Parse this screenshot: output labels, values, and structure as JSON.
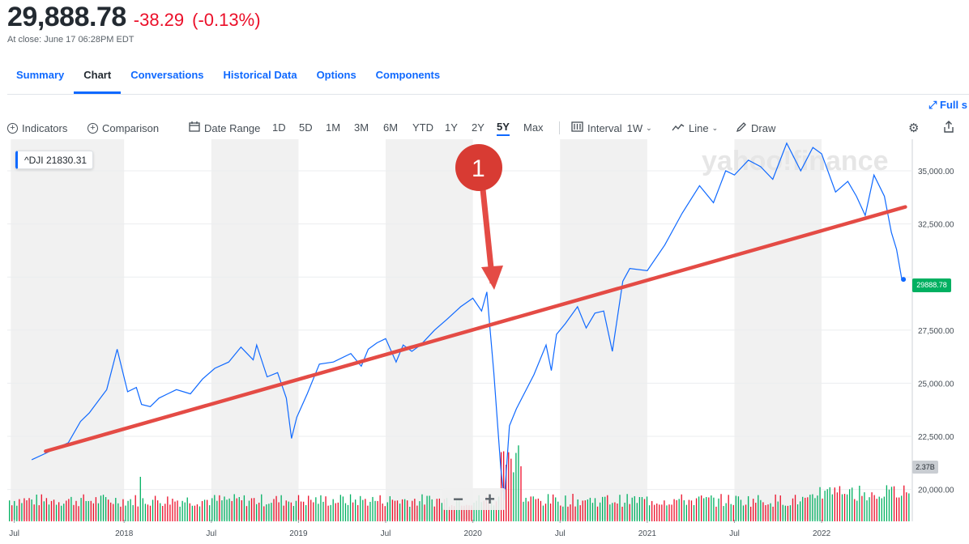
{
  "quote": {
    "price": "29,888.78",
    "change": "-38.29",
    "change_pct": "(-0.13%)",
    "close_time": "At close: June 17 06:28PM EDT"
  },
  "tabs": [
    "Summary",
    "Chart",
    "Conversations",
    "Historical Data",
    "Options",
    "Components"
  ],
  "active_tab": "Chart",
  "fullscreen_label": "Full s",
  "toolbar": {
    "indicators": "Indicators",
    "comparison": "Comparison",
    "date_range": "Date Range",
    "ranges": [
      "1D",
      "5D",
      "1M",
      "3M",
      "6M",
      "YTD",
      "1Y",
      "2Y",
      "5Y",
      "Max"
    ],
    "selected_range": "5Y",
    "interval_label": "Interval",
    "interval_value": "1W",
    "line_label": "Line",
    "draw_label": "Draw"
  },
  "legend": {
    "symbol": "^DJI",
    "value": "21830.31"
  },
  "price_tag": "29888.78",
  "volume_tag": "2.37B",
  "watermark": "yahoo!finance",
  "annotation": {
    "number": "1"
  },
  "colors": {
    "line": "#0f69ff",
    "trend": "#e44b45",
    "up": "#00b061",
    "down": "#eb0f29",
    "band": "#f1f1f1"
  },
  "chart_data": {
    "type": "line",
    "series": [
      {
        "values_by_date": true
      }
    ],
    "x_tick_labels": [
      "Jul",
      "2018",
      "Jul",
      "2019",
      "Jul",
      "2020",
      "Jul",
      "2021",
      "Jul",
      "2022"
    ],
    "y_tick_labels": [
      "35,000.00",
      "32,500.00",
      "",
      "27,500.00",
      "25,000.00",
      "22,500.00",
      "20,000.00"
    ],
    "y_ticks": [
      35000,
      32500,
      30000,
      27500,
      25000,
      22500,
      20000
    ],
    "ylim": [
      19000,
      36500
    ],
    "x": [
      2017.47,
      2017.55,
      2017.6,
      2017.68,
      2017.75,
      2017.8,
      2017.9,
      2017.96,
      2018.02,
      2018.07,
      2018.1,
      2018.15,
      2018.2,
      2018.25,
      2018.3,
      2018.38,
      2018.45,
      2018.52,
      2018.6,
      2018.67,
      2018.74,
      2018.76,
      2018.82,
      2018.88,
      2018.93,
      2018.96,
      2018.99,
      2019.05,
      2019.12,
      2019.2,
      2019.3,
      2019.36,
      2019.4,
      2019.45,
      2019.5,
      2019.56,
      2019.6,
      2019.65,
      2019.7,
      2019.78,
      2019.85,
      2019.93,
      2020.0,
      2020.05,
      2020.08,
      2020.12,
      2020.16,
      2020.18,
      2020.21,
      2020.25,
      2020.3,
      2020.35,
      2020.42,
      2020.45,
      2020.48,
      2020.53,
      2020.6,
      2020.65,
      2020.7,
      2020.75,
      2020.8,
      2020.86,
      2020.9,
      2021.0,
      2021.1,
      2021.2,
      2021.3,
      2021.38,
      2021.45,
      2021.5,
      2021.58,
      2021.65,
      2021.72,
      2021.8,
      2021.88,
      2021.95,
      2022.0,
      2022.08,
      2022.15,
      2022.2,
      2022.25,
      2022.3,
      2022.36,
      2022.4,
      2022.43,
      2022.46
    ],
    "y": [
      21400,
      21700,
      21900,
      22200,
      23200,
      23600,
      24700,
      26600,
      24600,
      24800,
      24000,
      23900,
      24300,
      24500,
      24700,
      24500,
      25200,
      25700,
      26000,
      26700,
      26100,
      26800,
      25300,
      25500,
      24300,
      22400,
      23400,
      24500,
      25900,
      26000,
      26400,
      25800,
      26600,
      26900,
      27100,
      26000,
      26800,
      26500,
      26800,
      27500,
      28000,
      28600,
      29000,
      28400,
      29300,
      25500,
      21000,
      19500,
      23000,
      23800,
      24600,
      25400,
      26800,
      25600,
      27300,
      27800,
      28600,
      27600,
      28300,
      28400,
      26500,
      29800,
      30400,
      30300,
      31500,
      33000,
      34300,
      33500,
      35000,
      34800,
      35500,
      35200,
      34600,
      36300,
      35000,
      36100,
      35800,
      34000,
      34500,
      33800,
      32900,
      34800,
      33800,
      32100,
      31300,
      29888
    ]
  },
  "trend_line": {
    "from": {
      "x": 2017.55,
      "y": 21800
    },
    "to": {
      "x": 2022.48,
      "y": 33300
    }
  }
}
